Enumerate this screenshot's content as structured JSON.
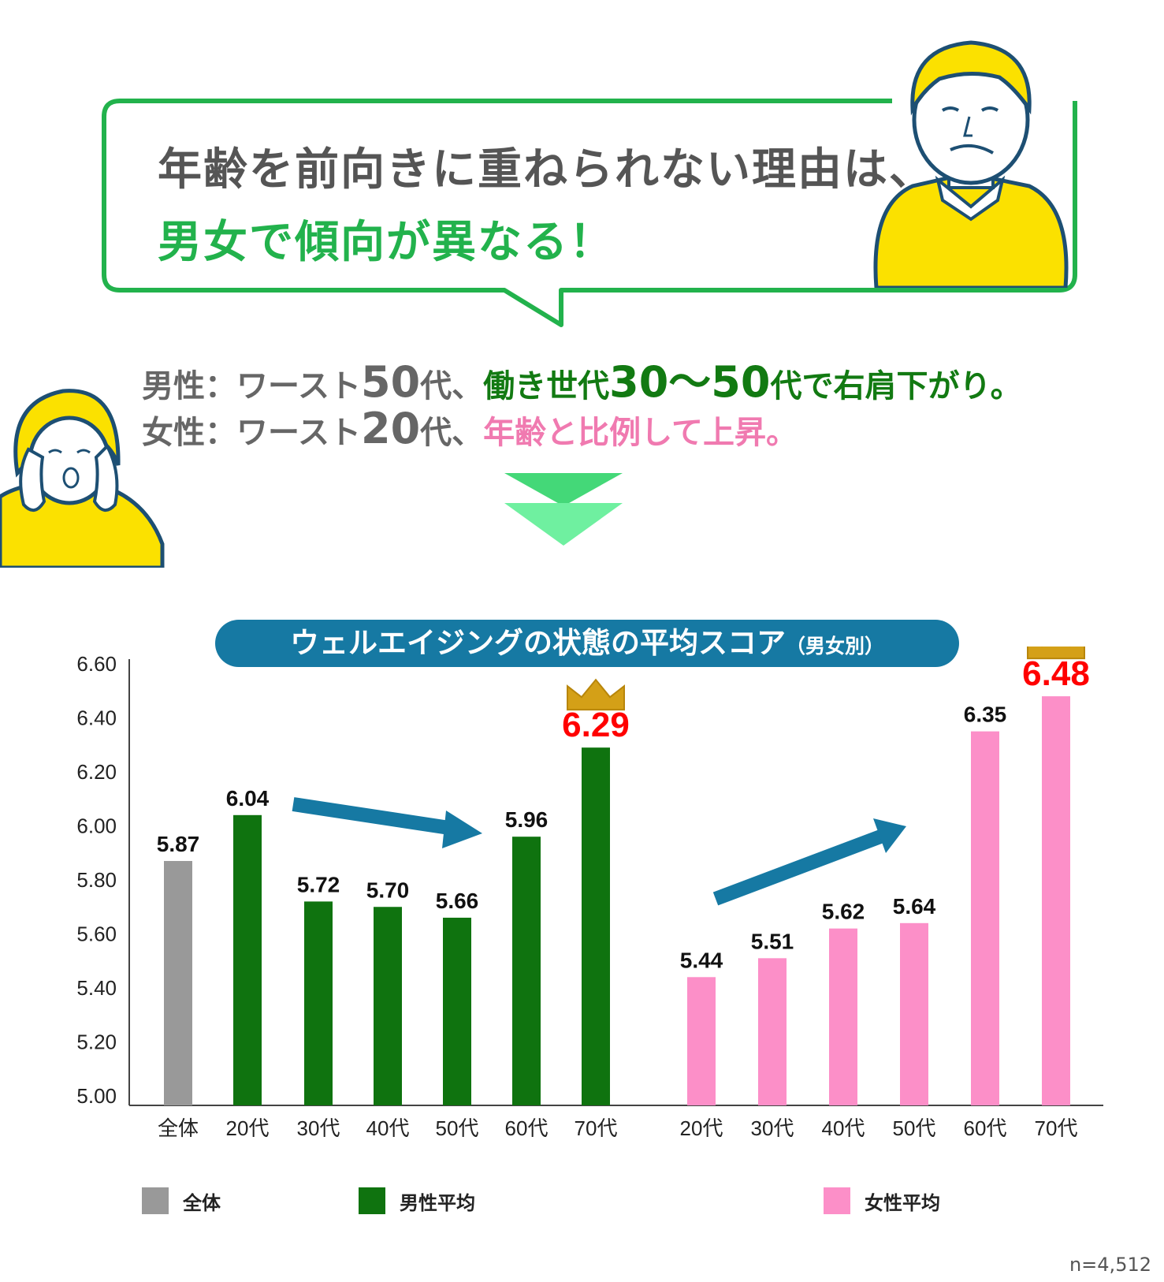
{
  "headline": {
    "line1": "年齢を前向きに重ねられない理由は、",
    "line2": "男女で傾向が異なる！"
  },
  "summary": {
    "male": {
      "prefix": "男性：ワースト",
      "worst_age": "50",
      "worst_suffix": "代、",
      "trend_a": "働き世代",
      "trend_num": "30～50",
      "trend_b": "代で右肩下がり。"
    },
    "female": {
      "prefix": "女性：ワースト",
      "worst_age": "20",
      "worst_suffix": "代、",
      "trend": "年齢と比例して上昇。"
    }
  },
  "chart_title": {
    "main": "ウェルエイジングの状態の平均スコア",
    "sub": "（男女別）"
  },
  "colors": {
    "overall": "#999999",
    "male": "#0f730f",
    "female": "#fc8fc8",
    "highlight": "#ff0000",
    "accent_green": "#22b24c",
    "arrow": "#1679a3",
    "man_shirt": "#fbe100"
  },
  "chart_data": {
    "type": "bar",
    "title": "ウェルエイジングの状態の平均スコア（男女別）",
    "ylim": [
      5.0,
      6.6
    ],
    "yticks": [
      "6.60",
      "6.40",
      "6.20",
      "6.00",
      "5.80",
      "5.60",
      "5.40",
      "5.20",
      "5.00"
    ],
    "grid": false,
    "legend_position": "bottom",
    "series": [
      {
        "name": "全体",
        "color": "#999999",
        "categories": [
          "全体"
        ],
        "values": [
          5.87
        ],
        "labels": [
          "5.87"
        ]
      },
      {
        "name": "男性平均",
        "color": "#0f730f",
        "categories": [
          "20代",
          "30代",
          "40代",
          "50代",
          "60代",
          "70代"
        ],
        "values": [
          6.04,
          5.72,
          5.7,
          5.66,
          5.96,
          6.29
        ],
        "labels": [
          "6.04",
          "5.72",
          "5.70",
          "5.66",
          "5.96",
          "6.29"
        ]
      },
      {
        "name": "女性平均",
        "color": "#fc8fc8",
        "categories": [
          "20代",
          "30代",
          "40代",
          "50代",
          "60代",
          "70代"
        ],
        "values": [
          5.44,
          5.51,
          5.62,
          5.64,
          6.35,
          6.48
        ],
        "labels": [
          "5.44",
          "5.51",
          "5.62",
          "5.64",
          "6.35",
          "6.48"
        ]
      }
    ],
    "highlighted": [
      "6.29",
      "6.48"
    ],
    "sample_size": "n=4,512"
  }
}
